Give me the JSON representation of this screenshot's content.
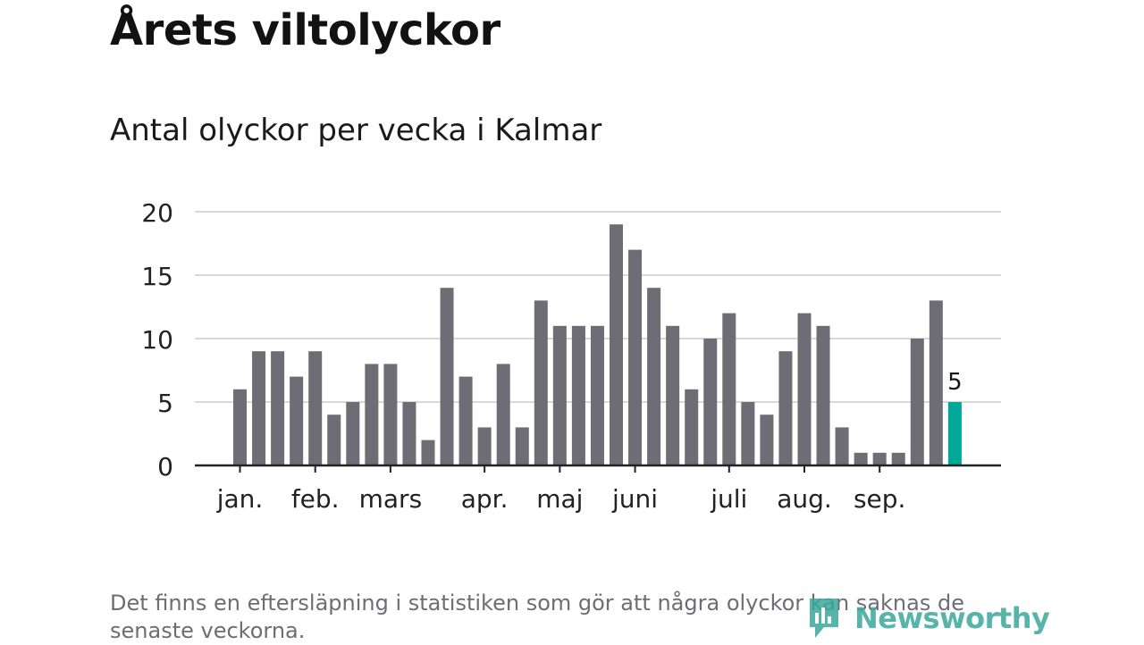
{
  "title": "Årets viltolyckor",
  "subtitle": "Antal olyckor per vecka i Kalmar",
  "footnote": "Det finns en eftersläpning i statistiken som gör att några olyckor kan saknas de senaste veckorna.",
  "brand": {
    "name": "Newsworthy",
    "logo_icon": "bar-chart-speech-bubble-icon",
    "color": "#3aa79c"
  },
  "colors": {
    "bar": "#6e6c74",
    "highlight": "#00a89a",
    "grid": "#d9d9d9",
    "axis": "#222222",
    "text": "#222222"
  },
  "chart_data": {
    "type": "bar",
    "title": "Antal olyckor per vecka i Kalmar",
    "xlabel": "",
    "ylabel": "",
    "values": [
      6,
      9,
      9,
      7,
      9,
      4,
      5,
      8,
      8,
      5,
      2,
      14,
      7,
      3,
      8,
      3,
      13,
      11,
      11,
      11,
      19,
      17,
      14,
      11,
      6,
      10,
      12,
      5,
      4,
      9,
      12,
      11,
      3,
      1,
      1,
      1,
      10,
      13,
      5
    ],
    "highlight_index": 38,
    "highlight_label": "5",
    "month_labels": [
      {
        "label": "jan.",
        "bar_index": 0
      },
      {
        "label": "feb.",
        "bar_index": 4
      },
      {
        "label": "mars",
        "bar_index": 8
      },
      {
        "label": "apr.",
        "bar_index": 13
      },
      {
        "label": "maj",
        "bar_index": 17
      },
      {
        "label": "juni",
        "bar_index": 21
      },
      {
        "label": "juli",
        "bar_index": 26
      },
      {
        "label": "aug.",
        "bar_index": 30
      },
      {
        "label": "sep.",
        "bar_index": 34
      }
    ],
    "yticks": [
      0,
      5,
      10,
      15,
      20
    ],
    "ylim": [
      0,
      20
    ],
    "grid": true,
    "legend": "none"
  }
}
